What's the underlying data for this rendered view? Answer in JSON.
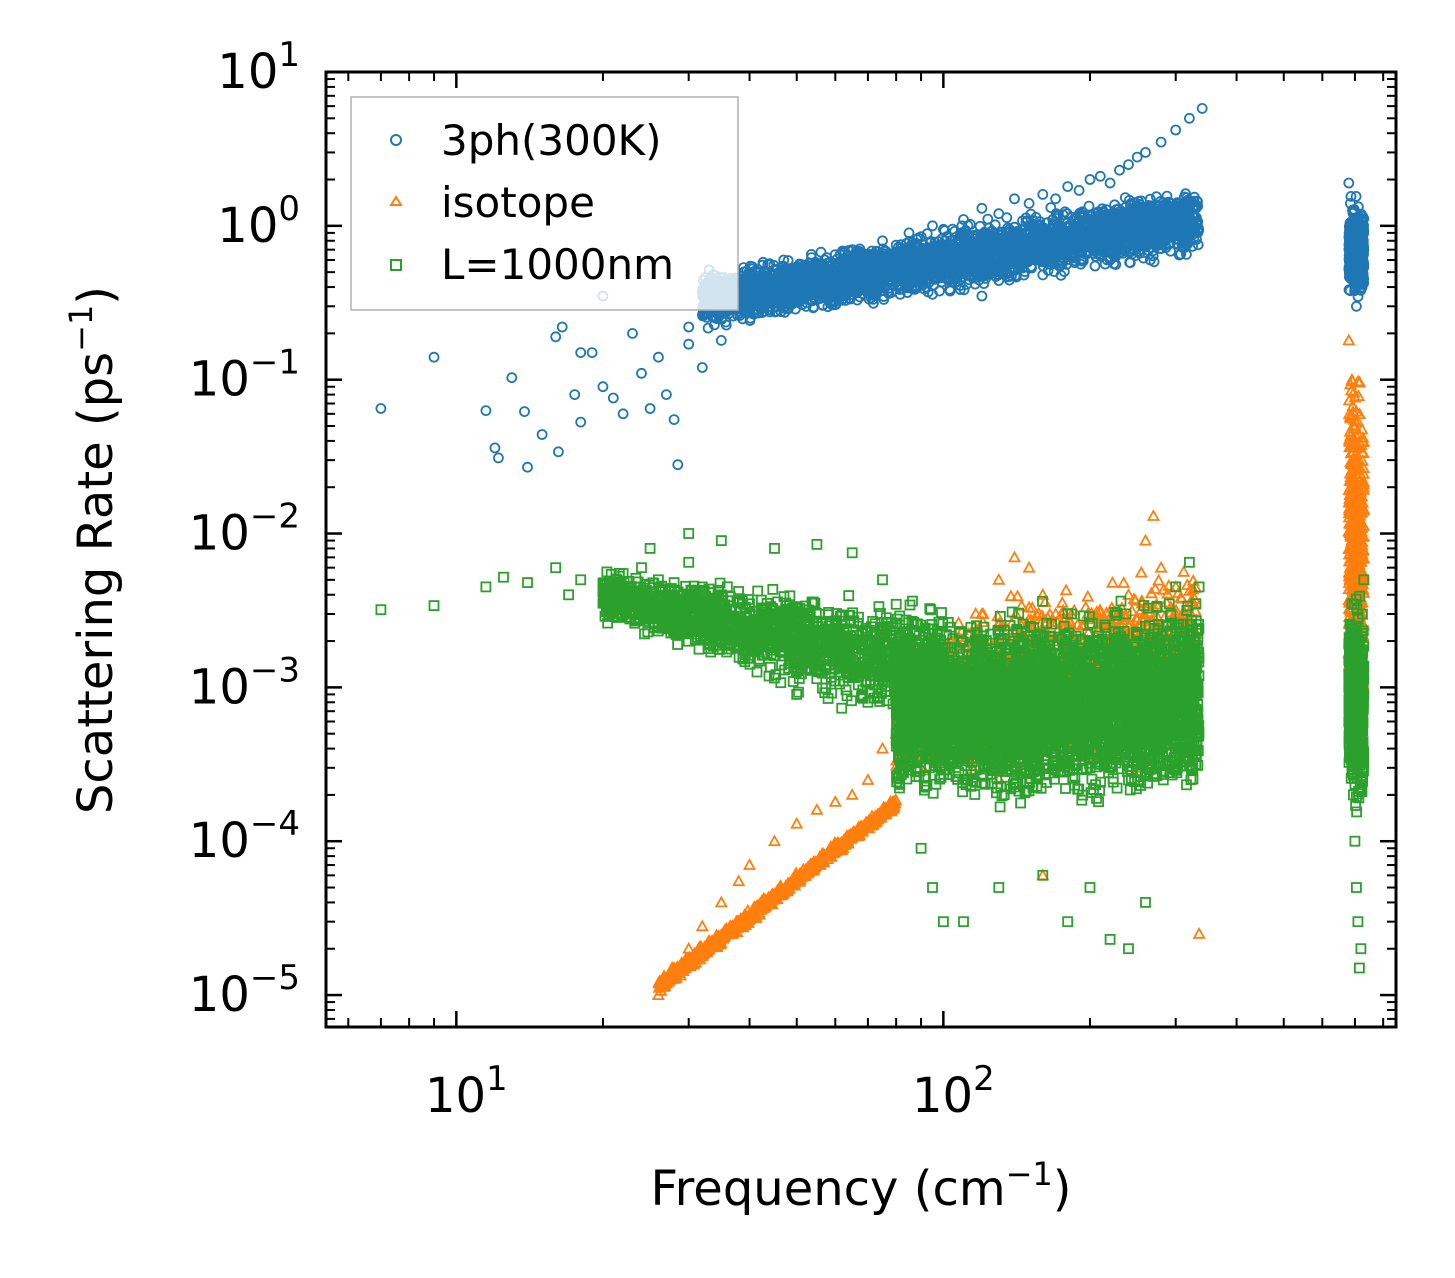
{
  "chart_data": {
    "type": "scatter",
    "xscale": "log",
    "yscale": "log",
    "xlim": [
      5.4,
      850
    ],
    "ylim": [
      6.2e-06,
      10
    ],
    "xlabel": "Frequency (cm",
    "xlabel_sup": "−1",
    "xlabel_tail": ")",
    "ylabel": "Scattering Rate (ps",
    "ylabel_sup": "−1",
    "ylabel_tail": ")",
    "x_ticks": [
      {
        "value": 10,
        "base": "10",
        "exp": "1"
      },
      {
        "value": 100,
        "base": "10",
        "exp": "2"
      }
    ],
    "y_ticks": [
      {
        "value": 10,
        "base": "10",
        "exp": "1"
      },
      {
        "value": 1,
        "base": "10",
        "exp": "0"
      },
      {
        "value": 0.1,
        "base": "10",
        "exp": "−1"
      },
      {
        "value": 0.01,
        "base": "10",
        "exp": "−2"
      },
      {
        "value": 0.001,
        "base": "10",
        "exp": "−3"
      },
      {
        "value": 0.0001,
        "base": "10",
        "exp": "−4"
      },
      {
        "value": 1e-05,
        "base": "10",
        "exp": "−5"
      }
    ],
    "legend_position": "top-left",
    "series": [
      {
        "name": "3ph(300K)",
        "marker": "circle",
        "color": "#1f77b4",
        "points": [
          [
            7.0,
            0.065
          ],
          [
            9.0,
            0.14
          ],
          [
            11.5,
            0.063
          ],
          [
            12.0,
            0.036
          ],
          [
            12.2,
            0.031
          ],
          [
            13.0,
            0.103
          ],
          [
            13.8,
            0.062
          ],
          [
            14.0,
            0.027
          ],
          [
            15.0,
            0.044
          ],
          [
            16.0,
            0.19
          ],
          [
            16.5,
            0.22
          ],
          [
            16.2,
            0.034
          ],
          [
            17.5,
            0.08
          ],
          [
            18.0,
            0.053
          ],
          [
            19.0,
            0.15
          ],
          [
            20.0,
            0.09
          ],
          [
            21.0,
            0.076
          ],
          [
            22.0,
            0.06
          ],
          [
            23.0,
            0.2
          ],
          [
            24.0,
            0.11
          ],
          [
            25.0,
            0.065
          ],
          [
            26.0,
            0.14
          ],
          [
            27.0,
            0.08
          ],
          [
            28.0,
            0.055
          ],
          [
            28.5,
            0.028
          ],
          [
            30.0,
            0.17
          ],
          [
            32.0,
            0.12
          ],
          [
            34.0,
            0.32
          ],
          [
            35.0,
            0.18
          ],
          [
            37.0,
            0.4
          ],
          [
            38.0,
            0.35
          ],
          [
            40.0,
            0.45
          ],
          [
            42.0,
            0.5
          ],
          [
            45.0,
            0.48
          ],
          [
            47.0,
            0.6
          ],
          [
            50.0,
            0.42
          ],
          [
            55.0,
            0.55
          ],
          [
            60.0,
            0.65
          ],
          [
            65.0,
            0.7
          ],
          [
            70.0,
            0.62
          ],
          [
            75.0,
            0.8
          ],
          [
            80.0,
            0.75
          ],
          [
            85.0,
            0.9
          ],
          [
            90.0,
            0.85
          ],
          [
            95.0,
            1.0
          ],
          [
            100.0,
            0.95
          ],
          [
            110.0,
            1.1
          ],
          [
            120.0,
            1.3
          ],
          [
            130.0,
            1.2
          ],
          [
            140.0,
            1.5
          ],
          [
            150.0,
            1.4
          ],
          [
            160.0,
            1.6
          ],
          [
            170.0,
            1.5
          ],
          [
            180.0,
            1.8
          ],
          [
            190.0,
            1.7
          ],
          [
            200.0,
            2.0
          ],
          [
            210.0,
            2.1
          ],
          [
            220.0,
            1.9
          ],
          [
            230.0,
            2.3
          ],
          [
            240.0,
            2.5
          ],
          [
            250.0,
            2.8
          ],
          [
            260.0,
            3.0
          ],
          [
            280.0,
            3.5
          ],
          [
            300.0,
            4.2
          ],
          [
            320.0,
            5.0
          ],
          [
            340.0,
            5.8
          ],
          [
            100.0,
            0.6
          ],
          [
            130.0,
            0.75
          ],
          [
            160.0,
            0.9
          ],
          [
            200.0,
            1.1
          ],
          [
            220.0,
            0.6
          ],
          [
            160.0,
            0.48
          ],
          [
            120.0,
            0.35
          ],
          [
            40.0,
            0.3
          ],
          [
            30.0,
            0.22
          ],
          [
            20.0,
            0.35
          ],
          [
            18.0,
            0.15
          ],
          [
            680.0,
            1.9
          ],
          [
            685.0,
            1.4
          ],
          [
            690.0,
            0.9
          ],
          [
            695,
            0.6
          ],
          [
            700,
            0.4
          ],
          [
            705,
            0.3
          ],
          [
            710,
            0.5
          ],
          [
            715,
            0.8
          ],
          [
            720,
            1.0
          ],
          [
            725,
            1.1
          ],
          [
            730,
            0.7
          ]
        ]
      },
      {
        "name": "isotope",
        "marker": "triangle",
        "color": "#ff7f0e",
        "points": [
          [
            26.0,
            1e-05
          ],
          [
            27.0,
            1.2e-05
          ],
          [
            28.0,
            1.5e-05
          ],
          [
            30.0,
            2e-05
          ],
          [
            32.0,
            2.8e-05
          ],
          [
            35.0,
            4e-05
          ],
          [
            38.0,
            5.5e-05
          ],
          [
            40.0,
            7e-05
          ],
          [
            45.0,
            0.0001
          ],
          [
            50.0,
            0.00013
          ],
          [
            55.0,
            0.00016
          ],
          [
            60.0,
            0.00018
          ],
          [
            65.0,
            0.0002
          ],
          [
            70.0,
            0.00025
          ],
          [
            75.0,
            0.0004
          ],
          [
            80.0,
            0.0005
          ],
          [
            90.0,
            0.0007
          ],
          [
            100.0,
            0.0012
          ],
          [
            110.0,
            0.002
          ],
          [
            120.0,
            0.003
          ],
          [
            130.0,
            0.005
          ],
          [
            140.0,
            0.007
          ],
          [
            150.0,
            0.006
          ],
          [
            160.0,
            0.004
          ],
          [
            170.0,
            0.003
          ],
          [
            180.0,
            0.002
          ],
          [
            200.0,
            0.0015
          ],
          [
            220.0,
            0.002
          ],
          [
            240.0,
            0.004
          ],
          [
            260.0,
            0.009
          ],
          [
            270.0,
            0.013
          ],
          [
            280.0,
            0.006
          ],
          [
            300.0,
            0.003
          ],
          [
            320.0,
            0.001
          ],
          [
            330.0,
            0.0004
          ],
          [
            335.0,
            2.5e-05
          ],
          [
            160.0,
            6e-05
          ],
          [
            250.0,
            0.0003
          ],
          [
            200.0,
            0.0005
          ],
          [
            680.0,
            0.18
          ],
          [
            690.0,
            0.1
          ],
          [
            700,
            0.05
          ],
          [
            705,
            0.02
          ],
          [
            710,
            0.005
          ],
          [
            715,
            0.002
          ],
          [
            720,
            0.0008
          ],
          [
            725,
            0.0006
          ]
        ]
      },
      {
        "name": "L=1000nm",
        "marker": "square",
        "color": "#2ca02c",
        "points": [
          [
            7.0,
            0.0032
          ],
          [
            9.0,
            0.0034
          ],
          [
            11.5,
            0.0045
          ],
          [
            12.5,
            0.0052
          ],
          [
            14.0,
            0.0048
          ],
          [
            16.0,
            0.006
          ],
          [
            17.0,
            0.004
          ],
          [
            18.0,
            0.005
          ],
          [
            20.0,
            0.0042
          ],
          [
            22.0,
            0.0055
          ],
          [
            24.0,
            0.006
          ],
          [
            26.0,
            0.005
          ],
          [
            28.0,
            0.0048
          ],
          [
            30.0,
            0.0065
          ],
          [
            32.0,
            0.0045
          ],
          [
            35.0,
            0.004
          ],
          [
            40.0,
            0.0035
          ],
          [
            45.0,
            0.003
          ],
          [
            50.0,
            0.0028
          ],
          [
            55.0,
            0.0025
          ],
          [
            60.0,
            0.002
          ],
          [
            65.0,
            0.0018
          ],
          [
            70.0,
            0.0015
          ],
          [
            75.0,
            0.0012
          ],
          [
            80.0,
            0.0011
          ],
          [
            90.0,
            0.001
          ],
          [
            100.0,
            0.0009
          ],
          [
            110.0,
            0.0008
          ],
          [
            120.0,
            0.0007
          ],
          [
            130.0,
            0.0006
          ],
          [
            140.0,
            0.0005
          ],
          [
            150.0,
            0.0005
          ],
          [
            160.0,
            0.0004
          ],
          [
            170.0,
            0.0004
          ],
          [
            180.0,
            0.0003
          ],
          [
            200.0,
            0.0003
          ],
          [
            220.0,
            0.0003
          ],
          [
            240.0,
            0.00025
          ],
          [
            260.0,
            0.0004
          ],
          [
            280.0,
            0.0008
          ],
          [
            300.0,
            0.0015
          ],
          [
            320.0,
            0.002
          ],
          [
            330.0,
            0.0035
          ],
          [
            335.0,
            0.0045
          ],
          [
            50.0,
            0.0009
          ],
          [
            60.0,
            0.0011
          ],
          [
            70.0,
            0.0008
          ],
          [
            80.0,
            0.0005
          ],
          [
            90.0,
            9e-05
          ],
          [
            95.0,
            5e-05
          ],
          [
            100.0,
            3e-05
          ],
          [
            110.0,
            3e-05
          ],
          [
            130.0,
            5e-05
          ],
          [
            160.0,
            6e-05
          ],
          [
            180.0,
            3e-05
          ],
          [
            200.0,
            5e-05
          ],
          [
            220.0,
            2.3e-05
          ],
          [
            240.0,
            2e-05
          ],
          [
            260.0,
            4e-05
          ],
          [
            150.0,
            0.0015
          ],
          [
            180.0,
            0.0012
          ],
          [
            200.0,
            0.0018
          ],
          [
            230.0,
            0.002
          ],
          [
            260.0,
            0.0025
          ],
          [
            300.0,
            0.0045
          ],
          [
            320.0,
            0.0065
          ],
          [
            35.0,
            0.009
          ],
          [
            45.0,
            0.008
          ],
          [
            55.0,
            0.0085
          ],
          [
            65.0,
            0.0075
          ],
          [
            75.0,
            0.005
          ],
          [
            25.0,
            0.008
          ],
          [
            30.0,
            0.01
          ],
          [
            680.0,
            0.0015
          ],
          [
            685.0,
            0.0008
          ],
          [
            690.0,
            0.0004
          ],
          [
            695,
            0.0002
          ],
          [
            700,
            0.0001
          ],
          [
            705,
            5e-05
          ],
          [
            710,
            3e-05
          ],
          [
            715,
            1.5e-05
          ],
          [
            720,
            2e-05
          ],
          [
            725,
            0.003
          ],
          [
            730,
            0.005
          ],
          [
            710,
            0.002
          ],
          [
            700,
            0.0006
          ],
          [
            690,
            0.0035
          ]
        ]
      }
    ],
    "clusters": [
      {
        "series": 0,
        "count": 3500,
        "xlo": 32,
        "xhi": 335,
        "ylo_a": 0.55,
        "ylo_b": 2.0,
        "yhi_a": 0.2,
        "yhi_b": 0.6,
        "center_exp": 0.55,
        "spread": 0.25
      },
      {
        "series": 0,
        "count": 500,
        "xlo": 680,
        "xhi": 730,
        "ylo_a": 0.3,
        "ylo_b": 0.3,
        "yhi_a": 1.6,
        "yhi_b": 1.6,
        "center_exp": -0.3,
        "spread": 0.4
      },
      {
        "series": 1,
        "count": 700,
        "xlo": 26,
        "xhi": 80,
        "ylo_a": 1e-05,
        "ylo_b": 0.00016,
        "yhi_a": 1.3e-05,
        "yhi_b": 0.0002,
        "center_exp": 0,
        "spread": 0.1
      },
      {
        "series": 1,
        "count": 1800,
        "xlo": 80,
        "xhi": 330,
        "ylo_a": 0.0002,
        "ylo_b": 0.0003,
        "yhi_a": 0.003,
        "yhi_b": 0.009,
        "center_exp": 0,
        "spread": 0.5
      },
      {
        "series": 1,
        "count": 450,
        "xlo": 680,
        "xhi": 730,
        "ylo_a": 0.0005,
        "ylo_b": 0.0005,
        "yhi_a": 0.18,
        "yhi_b": 0.18,
        "center_exp": 0,
        "spread": 0.5
      },
      {
        "series": 2,
        "count": 1700,
        "xlo": 20,
        "xhi": 100,
        "ylo_a": 0.0025,
        "ylo_b": 0.0004,
        "yhi_a": 0.006,
        "yhi_b": 0.004,
        "center_exp": 0,
        "spread": 0.5
      },
      {
        "series": 2,
        "count": 4200,
        "xlo": 80,
        "xhi": 335,
        "ylo_a": 0.00015,
        "ylo_b": 0.00015,
        "yhi_a": 0.003,
        "yhi_b": 0.005,
        "center_exp": 0,
        "spread": 0.5
      },
      {
        "series": 2,
        "count": 500,
        "xlo": 680,
        "xhi": 730,
        "ylo_a": 0.00012,
        "ylo_b": 0.00012,
        "yhi_a": 0.005,
        "yhi_b": 0.005,
        "center_exp": 0,
        "spread": 0.5
      }
    ]
  }
}
